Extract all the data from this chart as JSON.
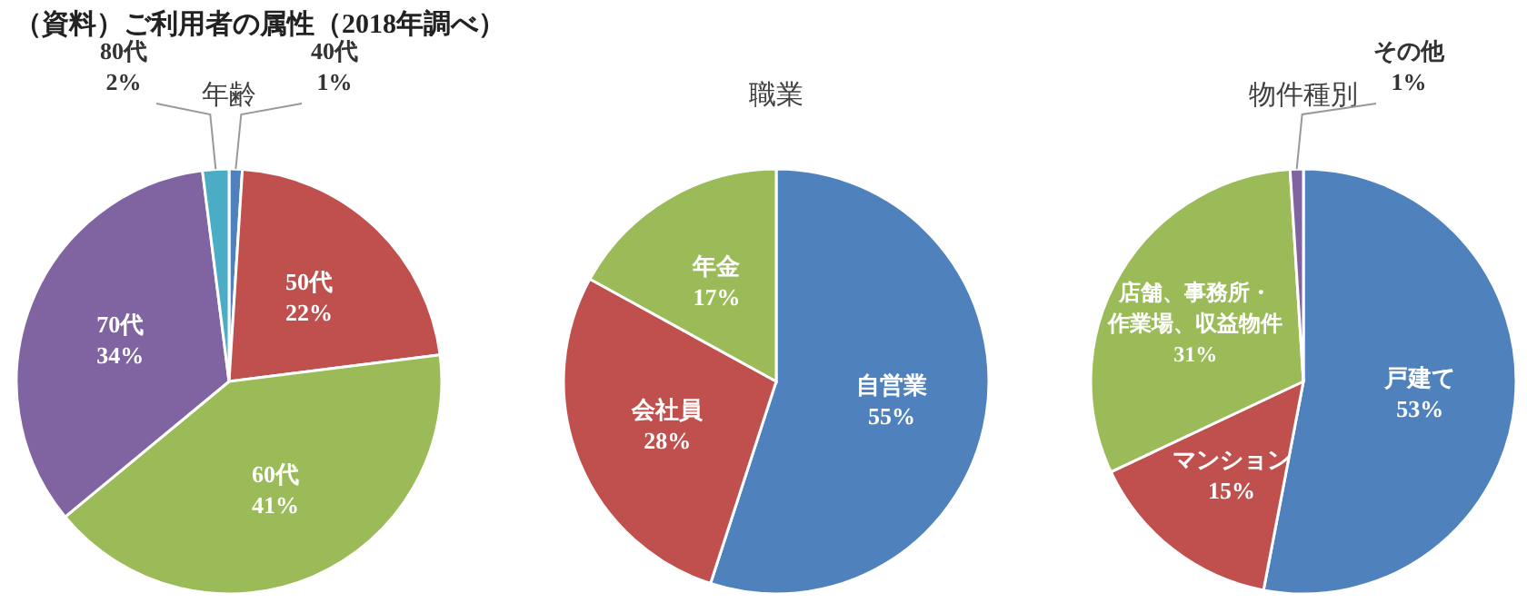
{
  "chart_data": [
    {
      "type": "pie",
      "title": "年齢",
      "annotations": [
        "（資料）ご利用者の属性（2018年調べ）"
      ],
      "categories": [
        "40代",
        "50代",
        "60代",
        "70代",
        "80代"
      ],
      "values": [
        1,
        22,
        41,
        34,
        2
      ],
      "colors": [
        "#4f81bd",
        "#c0504d",
        "#9bbb59",
        "#8064a2",
        "#4bacc6"
      ],
      "value_labels": [
        "1%",
        "22%",
        "41%",
        "34%",
        "2%"
      ]
    },
    {
      "type": "pie",
      "title": "職業",
      "categories": [
        "自営業",
        "会社員",
        "年金"
      ],
      "values": [
        55,
        28,
        17
      ],
      "colors": [
        "#4f81bd",
        "#c0504d",
        "#9bbb59"
      ],
      "value_labels": [
        "55%",
        "28%",
        "17%"
      ]
    },
    {
      "type": "pie",
      "title": "物件種別",
      "categories": [
        "戸建て",
        "マンション",
        "店舗、事務所・作業場、収益物件",
        "その他"
      ],
      "values": [
        53,
        15,
        31,
        1
      ],
      "colors": [
        "#4f81bd",
        "#c0504d",
        "#9bbb59",
        "#8064a2"
      ],
      "value_labels": [
        "53%",
        "15%",
        "31%",
        "1%"
      ]
    }
  ]
}
